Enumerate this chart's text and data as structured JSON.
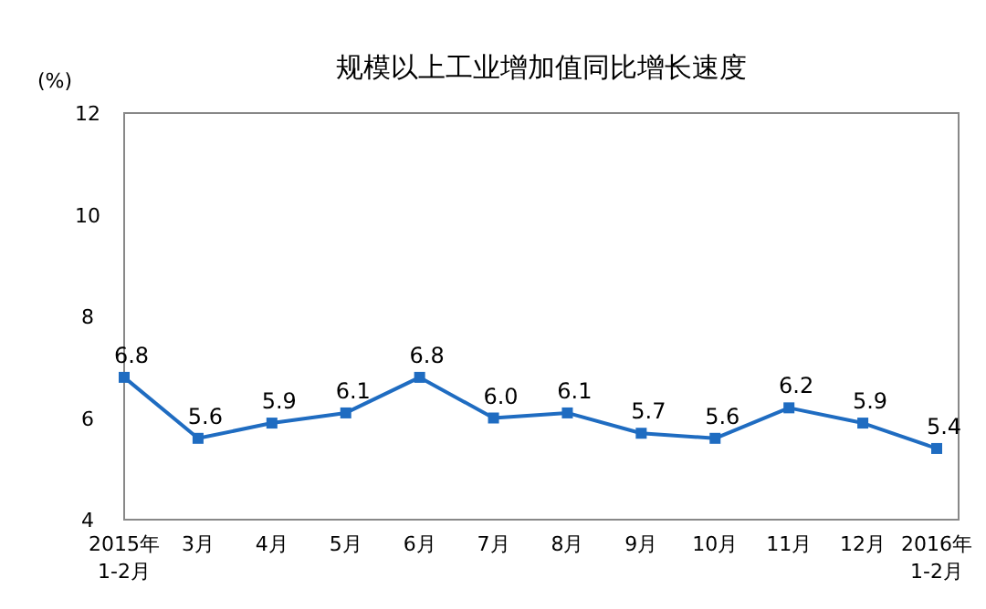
{
  "chart_data": {
    "type": "line",
    "title": "规模以上工业增加值同比增长速度",
    "ylabel": "(%)",
    "categories": [
      "2015年\n1-2月",
      "3月",
      "4月",
      "5月",
      "6月",
      "7月",
      "8月",
      "9月",
      "10月",
      "11月",
      "12月",
      "2016年\n1-2月"
    ],
    "series": [
      {
        "color": "#1f6cc1",
        "values": [
          6.8,
          5.6,
          5.9,
          6.1,
          6.8,
          6.0,
          6.1,
          5.7,
          5.6,
          6.2,
          5.9,
          5.4
        ],
        "value_labels": [
          "6.8",
          "5.6",
          "5.9",
          "6.1",
          "6.8",
          "6.0",
          "6.1",
          "5.7",
          "5.6",
          "6.2",
          "5.9",
          "5.4"
        ]
      }
    ],
    "ylim": [
      4,
      12
    ],
    "yticks": [
      4,
      6,
      8,
      10,
      12
    ],
    "marker": "square",
    "line_style": "solid"
  }
}
